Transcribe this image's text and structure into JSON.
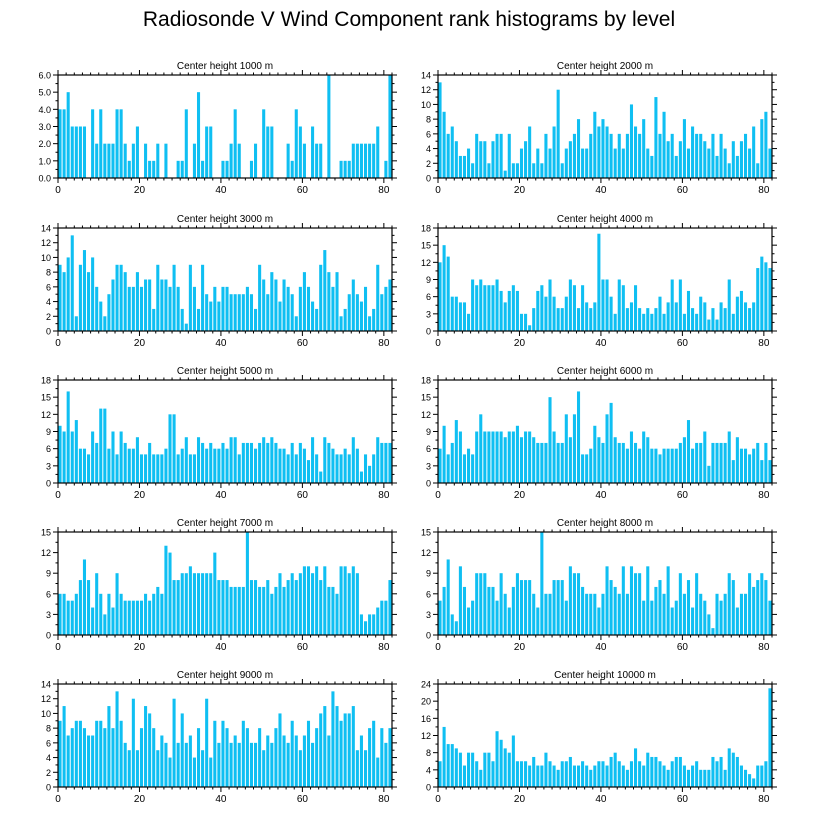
{
  "title": "Radiosonde V Wind Component rank histograms by level",
  "colors": {
    "bar": "#0fbff2",
    "axis": "#000000",
    "background": "#ffffff"
  },
  "chart_data": [
    {
      "type": "bar",
      "title": "Center height 1000 m",
      "x_ticks": [
        0,
        20,
        40,
        60,
        80
      ],
      "xlim": [
        0,
        82
      ],
      "y_ticks": [
        "0.0",
        "1.0",
        "2.0",
        "3.0",
        "4.0",
        "5.0",
        "6.0"
      ],
      "ylim": [
        0,
        6
      ],
      "values": [
        4,
        4,
        5,
        3,
        3,
        3,
        3,
        0,
        4,
        2,
        4,
        2,
        2,
        2,
        4,
        4,
        2,
        1,
        2,
        3,
        0,
        2,
        1,
        1,
        2,
        0,
        2,
        0,
        0,
        1,
        1,
        4,
        0,
        2,
        5,
        1,
        3,
        3,
        0,
        0,
        1,
        1,
        2,
        4,
        2,
        0,
        0,
        1,
        2,
        0,
        4,
        3,
        3,
        0,
        0,
        0,
        2,
        1,
        4,
        3,
        2,
        0,
        3,
        2,
        2,
        0,
        6,
        0,
        0,
        1,
        1,
        1,
        2,
        2,
        2,
        2,
        2,
        2,
        3,
        0,
        1,
        6
      ]
    },
    {
      "type": "bar",
      "title": "Center height 2000 m",
      "x_ticks": [
        0,
        20,
        40,
        60,
        80
      ],
      "xlim": [
        0,
        82
      ],
      "y_ticks": [
        "0",
        "2",
        "4",
        "6",
        "8",
        "10",
        "12",
        "14"
      ],
      "ylim": [
        0,
        14
      ],
      "values": [
        13,
        9,
        6,
        7,
        5,
        3,
        3,
        4,
        2,
        6,
        5,
        5,
        2,
        5,
        6,
        6,
        1,
        6,
        2,
        2,
        4,
        5,
        7,
        2,
        4,
        2,
        6,
        4,
        7,
        12,
        2,
        4,
        5,
        6,
        8,
        4,
        4,
        6,
        9,
        7,
        8,
        7,
        6,
        4,
        6,
        4,
        6,
        10,
        7,
        6,
        8,
        4,
        3,
        11,
        6,
        9,
        5,
        6,
        3,
        5,
        8,
        4,
        7,
        6,
        6,
        5,
        4,
        6,
        3,
        6,
        4,
        2,
        5,
        3,
        5,
        6,
        4,
        7,
        2,
        8,
        9,
        4
      ]
    },
    {
      "type": "bar",
      "title": "Center height 3000 m",
      "x_ticks": [
        0,
        20,
        40,
        60,
        80
      ],
      "xlim": [
        0,
        82
      ],
      "y_ticks": [
        "0",
        "2",
        "4",
        "6",
        "8",
        "10",
        "12",
        "14"
      ],
      "ylim": [
        0,
        14
      ],
      "values": [
        9,
        8,
        10,
        13,
        2,
        9,
        11,
        8,
        10,
        6,
        4,
        2,
        5,
        7,
        9,
        9,
        8,
        6,
        6,
        8,
        6,
        7,
        7,
        3,
        9,
        7,
        7,
        6,
        9,
        6,
        3,
        1,
        9,
        6,
        3,
        9,
        5,
        4,
        6,
        4,
        6,
        6,
        5,
        5,
        5,
        5,
        6,
        5,
        3,
        9,
        7,
        5,
        8,
        7,
        4,
        7,
        6,
        5,
        2,
        6,
        8,
        6,
        4,
        3,
        9,
        11,
        8,
        6,
        8,
        2,
        3,
        5,
        7,
        5,
        4,
        6,
        2,
        3,
        9,
        5,
        6,
        7
      ]
    },
    {
      "type": "bar",
      "title": "Center height 4000 m",
      "x_ticks": [
        0,
        20,
        40,
        60,
        80
      ],
      "xlim": [
        0,
        82
      ],
      "y_ticks": [
        "0",
        "3",
        "6",
        "9",
        "12",
        "15",
        "18"
      ],
      "ylim": [
        0,
        18
      ],
      "values": [
        12,
        15,
        13,
        6,
        6,
        5,
        5,
        3,
        9,
        8,
        9,
        8,
        8,
        8,
        9,
        7,
        5,
        7,
        8,
        7,
        3,
        3,
        1,
        4,
        7,
        8,
        6,
        9,
        6,
        4,
        4,
        6,
        9,
        8,
        4,
        8,
        5,
        4,
        5,
        17,
        9,
        9,
        6,
        3,
        9,
        8,
        4,
        5,
        8,
        4,
        3,
        4,
        3,
        4,
        6,
        3,
        5,
        9,
        5,
        9,
        3,
        7,
        4,
        3,
        6,
        5,
        2,
        4,
        2,
        5,
        4,
        9,
        3,
        6,
        7,
        5,
        4,
        5,
        11,
        13,
        12,
        11
      ]
    },
    {
      "type": "bar",
      "title": "Center height 5000 m",
      "x_ticks": [
        0,
        20,
        40,
        60,
        80
      ],
      "xlim": [
        0,
        82
      ],
      "y_ticks": [
        "0",
        "3",
        "6",
        "9",
        "12",
        "15",
        "18"
      ],
      "ylim": [
        0,
        18
      ],
      "values": [
        10,
        9,
        16,
        9,
        11,
        6,
        6,
        5,
        9,
        7,
        13,
        13,
        6,
        9,
        5,
        9,
        7,
        6,
        6,
        8,
        5,
        5,
        7,
        5,
        5,
        5,
        6,
        12,
        12,
        5,
        6,
        8,
        5,
        5,
        8,
        7,
        6,
        7,
        6,
        6,
        7,
        6,
        8,
        8,
        5,
        7,
        7,
        7,
        6,
        7,
        8,
        7,
        8,
        7,
        6,
        6,
        5,
        7,
        5,
        7,
        6,
        4,
        8,
        5,
        2,
        8,
        7,
        6,
        5,
        5,
        6,
        5,
        8,
        6,
        2,
        5,
        3,
        5,
        8,
        7,
        7,
        7
      ]
    },
    {
      "type": "bar",
      "title": "Center height 6000 m",
      "x_ticks": [
        0,
        20,
        40,
        60,
        80
      ],
      "xlim": [
        0,
        82
      ],
      "y_ticks": [
        "0",
        "3",
        "6",
        "9",
        "12",
        "15",
        "18"
      ],
      "ylim": [
        0,
        18
      ],
      "values": [
        6,
        10,
        5,
        7,
        11,
        9,
        5,
        6,
        5,
        9,
        12,
        9,
        9,
        9,
        9,
        9,
        8,
        9,
        9,
        10,
        8,
        9,
        9,
        8,
        7,
        7,
        7,
        15,
        9,
        7,
        7,
        12,
        8,
        12,
        16,
        5,
        5,
        6,
        10,
        8,
        7,
        12,
        14,
        8,
        7,
        7,
        6,
        9,
        7,
        6,
        9,
        8,
        6,
        6,
        5,
        6,
        6,
        6,
        6,
        7,
        8,
        11,
        6,
        7,
        7,
        9,
        3,
        7,
        7,
        7,
        7,
        9,
        4,
        8,
        6,
        6,
        5,
        6,
        7,
        4,
        7,
        4
      ]
    },
    {
      "type": "bar",
      "title": "Center height 7000 m",
      "x_ticks": [
        0,
        20,
        40,
        60,
        80
      ],
      "xlim": [
        0,
        82
      ],
      "y_ticks": [
        "0",
        "3",
        "6",
        "9",
        "12",
        "15"
      ],
      "ylim": [
        0,
        15
      ],
      "values": [
        6,
        6,
        5,
        5,
        6,
        8,
        11,
        8,
        4,
        9,
        6,
        3,
        6,
        4,
        9,
        6,
        5,
        5,
        5,
        5,
        5,
        6,
        5,
        6,
        7,
        6,
        13,
        12,
        8,
        8,
        9,
        9,
        10,
        9,
        9,
        9,
        9,
        9,
        12,
        8,
        8,
        8,
        7,
        7,
        7,
        7,
        15,
        8,
        8,
        7,
        7,
        8,
        6,
        7,
        9,
        7,
        8,
        9,
        8,
        9,
        10,
        10,
        9,
        10,
        8,
        10,
        7,
        7,
        6,
        10,
        10,
        9,
        10,
        9,
        3,
        2,
        3,
        3,
        4,
        5,
        5,
        8
      ]
    },
    {
      "type": "bar",
      "title": "Center height 8000 m",
      "x_ticks": [
        0,
        20,
        40,
        60,
        80
      ],
      "xlim": [
        0,
        82
      ],
      "y_ticks": [
        "0",
        "3",
        "6",
        "9",
        "12",
        "15"
      ],
      "ylim": [
        0,
        15
      ],
      "values": [
        5,
        7,
        11,
        3,
        2,
        10,
        7,
        4,
        5,
        9,
        9,
        9,
        7,
        7,
        5,
        9,
        6,
        4,
        7,
        9,
        8,
        8,
        8,
        6,
        4,
        15,
        6,
        6,
        8,
        8,
        8,
        5,
        10,
        9,
        9,
        7,
        6,
        6,
        6,
        4,
        6,
        10,
        8,
        7,
        6,
        10,
        6,
        10,
        9,
        9,
        5,
        10,
        5,
        7,
        8,
        6,
        10,
        4,
        5,
        9,
        6,
        8,
        4,
        9,
        6,
        5,
        3,
        1,
        6,
        5,
        6,
        9,
        8,
        4,
        6,
        6,
        9,
        7,
        8,
        9,
        8,
        5
      ]
    },
    {
      "type": "bar",
      "title": "Center height 9000 m",
      "x_ticks": [
        0,
        20,
        40,
        60,
        80
      ],
      "xlim": [
        0,
        82
      ],
      "y_ticks": [
        "0",
        "2",
        "4",
        "6",
        "8",
        "10",
        "12",
        "14"
      ],
      "ylim": [
        0,
        14
      ],
      "values": [
        9,
        11,
        7,
        8,
        9,
        9,
        8,
        7,
        7,
        9,
        9,
        8,
        11,
        8,
        13,
        9,
        6,
        5,
        12,
        5,
        8,
        11,
        10,
        8,
        5,
        7,
        6,
        4,
        12,
        6,
        10,
        6,
        7,
        4,
        8,
        5,
        12,
        4,
        9,
        6,
        9,
        8,
        6,
        7,
        6,
        9,
        8,
        6,
        6,
        8,
        5,
        7,
        6,
        8,
        10,
        7,
        6,
        9,
        7,
        5,
        7,
        9,
        6,
        8,
        10,
        11,
        7,
        13,
        11,
        9,
        10,
        10,
        11,
        5,
        7,
        5,
        8,
        9,
        4,
        8,
        6,
        8
      ]
    },
    {
      "type": "bar",
      "title": "Center height 10000 m",
      "x_ticks": [
        0,
        20,
        40,
        60,
        80
      ],
      "xlim": [
        0,
        82
      ],
      "y_ticks": [
        "0",
        "4",
        "8",
        "12",
        "16",
        "20",
        "24"
      ],
      "ylim": [
        0,
        24
      ],
      "values": [
        6,
        14,
        10,
        10,
        9,
        8,
        5,
        8,
        8,
        6,
        4,
        8,
        8,
        6,
        13,
        11,
        9,
        8,
        12,
        6,
        6,
        6,
        5,
        7,
        5,
        5,
        8,
        6,
        5,
        4,
        6,
        6,
        7,
        5,
        5,
        6,
        5,
        4,
        5,
        6,
        6,
        5,
        7,
        8,
        6,
        5,
        4,
        6,
        9,
        6,
        5,
        8,
        7,
        7,
        6,
        5,
        4,
        6,
        7,
        7,
        5,
        4,
        5,
        6,
        4,
        4,
        4,
        7,
        6,
        7,
        4,
        9,
        8,
        7,
        5,
        4,
        3,
        2,
        5,
        5,
        6,
        23
      ]
    }
  ]
}
